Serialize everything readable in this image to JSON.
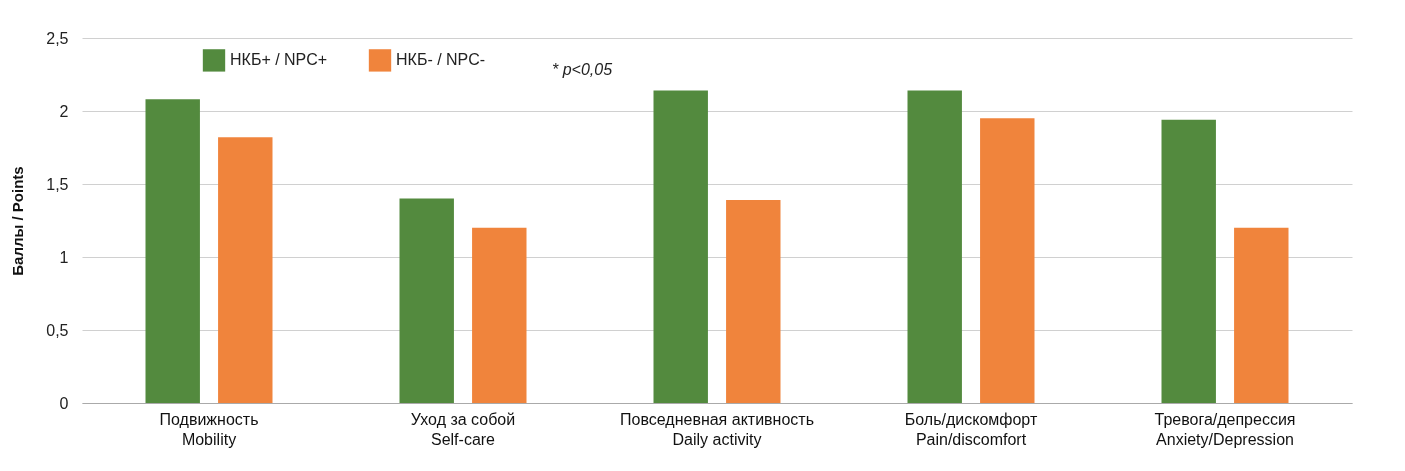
{
  "chart_data": {
    "type": "bar",
    "ylabel": "Баллы / Points",
    "categories": [
      "Подвижность\nMobility",
      "Уход за собой\nSelf-care",
      "Повседневная активность\nDaily activity",
      "Боль/дискомфорт\nPain/discomfort",
      "Тревога/депрессия\nAnxiety/Depression"
    ],
    "series": [
      {
        "name": "НКБ+ / NPC+",
        "color": "#538a3e",
        "values": [
          2.08,
          1.4,
          2.14,
          2.14,
          1.94
        ]
      },
      {
        "name": "НКБ- / NPC-",
        "color": "#f0843c",
        "values": [
          1.82,
          1.2,
          1.39,
          1.95,
          1.2
        ]
      }
    ],
    "ylim": [
      0,
      2.5
    ],
    "yticks": [
      {
        "value": 0,
        "label": "0"
      },
      {
        "value": 0.5,
        "label": "0,5"
      },
      {
        "value": 1,
        "label": "1"
      },
      {
        "value": 1.5,
        "label": "1,5"
      },
      {
        "value": 2,
        "label": "2"
      },
      {
        "value": 2.5,
        "label": "2,5"
      }
    ],
    "grid": "y",
    "legend": "top left",
    "annotations": [
      "* p<0,05"
    ]
  }
}
